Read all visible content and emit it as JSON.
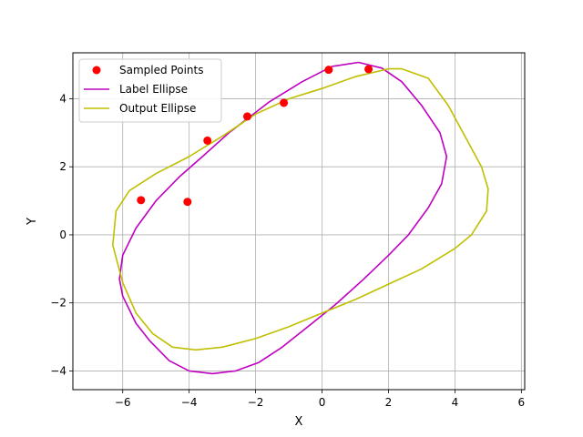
{
  "chart_data": {
    "type": "scatter",
    "title": "",
    "xlabel": "X",
    "ylabel": "Y",
    "xlim": [
      -7.5,
      6.1
    ],
    "ylim": [
      -4.55,
      5.35
    ],
    "xticks": [
      -6,
      -4,
      -2,
      0,
      2,
      4,
      6
    ],
    "yticks": [
      -4,
      -2,
      0,
      2,
      4
    ],
    "xtick_labels": [
      "−6",
      "−4",
      "−2",
      "0",
      "2",
      "4",
      "6"
    ],
    "ytick_labels": [
      "−4",
      "−2",
      "0",
      "2",
      "4"
    ],
    "grid": true,
    "legend": {
      "placement": "top-left",
      "entries": [
        "Sampled Points",
        "Label Ellipse",
        "Output Ellipse"
      ]
    },
    "series": [
      {
        "name": "Sampled Points",
        "kind": "scatter",
        "color": "#ff0000",
        "points": [
          [
            -5.45,
            1.02
          ],
          [
            -4.05,
            0.97
          ],
          [
            -3.45,
            2.77
          ],
          [
            -2.25,
            3.48
          ],
          [
            -1.15,
            3.88
          ],
          [
            0.2,
            4.85
          ],
          [
            1.4,
            4.87
          ]
        ]
      },
      {
        "name": "Label Ellipse",
        "kind": "line",
        "color": "#bf00bf",
        "points": [
          [
            1.1,
            5.07
          ],
          [
            1.8,
            4.9
          ],
          [
            2.4,
            4.5
          ],
          [
            3.0,
            3.8
          ],
          [
            3.55,
            3.0
          ],
          [
            3.75,
            2.3
          ],
          [
            3.6,
            1.5
          ],
          [
            3.2,
            0.8
          ],
          [
            2.6,
            0.0
          ],
          [
            2.0,
            -0.6
          ],
          [
            1.2,
            -1.35
          ],
          [
            0.4,
            -2.05
          ],
          [
            -0.3,
            -2.6
          ],
          [
            -1.2,
            -3.3
          ],
          [
            -1.9,
            -3.75
          ],
          [
            -2.6,
            -4.0
          ],
          [
            -3.3,
            -4.08
          ],
          [
            -4.0,
            -4.0
          ],
          [
            -4.6,
            -3.7
          ],
          [
            -5.2,
            -3.1
          ],
          [
            -5.6,
            -2.6
          ],
          [
            -6.0,
            -1.8
          ],
          [
            -6.1,
            -1.3
          ],
          [
            -6.0,
            -0.6
          ],
          [
            -5.6,
            0.2
          ],
          [
            -5.0,
            1.0
          ],
          [
            -4.3,
            1.7
          ],
          [
            -3.6,
            2.3
          ],
          [
            -2.8,
            3.0
          ],
          [
            -1.6,
            3.9
          ],
          [
            -0.6,
            4.5
          ],
          [
            0.3,
            4.95
          ],
          [
            1.1,
            5.07
          ]
        ]
      },
      {
        "name": "Output Ellipse",
        "kind": "line",
        "color": "#bfbf00",
        "points": [
          [
            2.4,
            4.88
          ],
          [
            3.2,
            4.6
          ],
          [
            3.8,
            3.8
          ],
          [
            4.3,
            2.9
          ],
          [
            4.8,
            2.0
          ],
          [
            5.0,
            1.35
          ],
          [
            4.95,
            0.7
          ],
          [
            4.5,
            0.0
          ],
          [
            4.0,
            -0.4
          ],
          [
            3.0,
            -1.0
          ],
          [
            2.0,
            -1.45
          ],
          [
            1.0,
            -1.9
          ],
          [
            0.0,
            -2.3
          ],
          [
            -1.0,
            -2.7
          ],
          [
            -2.0,
            -3.05
          ],
          [
            -3.0,
            -3.3
          ],
          [
            -3.8,
            -3.38
          ],
          [
            -4.5,
            -3.3
          ],
          [
            -5.1,
            -2.9
          ],
          [
            -5.6,
            -2.3
          ],
          [
            -6.0,
            -1.4
          ],
          [
            -6.3,
            -0.3
          ],
          [
            -6.2,
            0.7
          ],
          [
            -5.8,
            1.3
          ],
          [
            -5.0,
            1.8
          ],
          [
            -4.0,
            2.3
          ],
          [
            -3.0,
            2.9
          ],
          [
            -2.0,
            3.55
          ],
          [
            -1.0,
            4.0
          ],
          [
            0.0,
            4.3
          ],
          [
            1.0,
            4.65
          ],
          [
            2.0,
            4.88
          ],
          [
            2.4,
            4.88
          ]
        ]
      }
    ]
  }
}
